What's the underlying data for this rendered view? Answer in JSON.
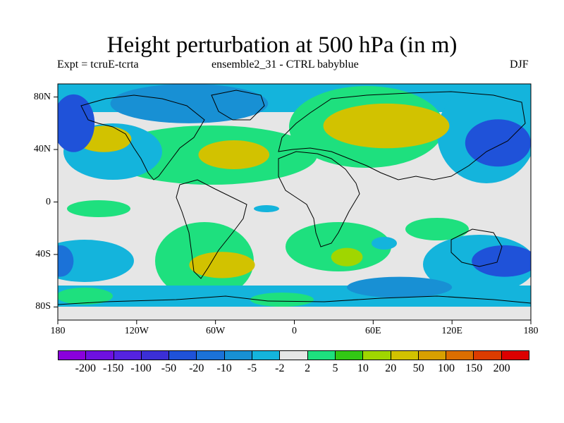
{
  "title": "Height perturbation at 500 hPa (in m)",
  "subtitle": {
    "left": "Expt = tcruE-tcrta",
    "center": "ensemble2_31 - CTRL babyblue",
    "right": "DJF"
  },
  "map": {
    "projection": "cylindrical equidistant",
    "lon_range": [
      -180,
      180
    ],
    "lat_range": [
      -90,
      90
    ],
    "ocean_background": "#e6e6e6",
    "coastline_color": "#000000",
    "lat_ticks": [
      {
        "value": 80,
        "label": "80N"
      },
      {
        "value": 40,
        "label": "40N"
      },
      {
        "value": 0,
        "label": "0"
      },
      {
        "value": -40,
        "label": "40S"
      },
      {
        "value": -80,
        "label": "80S"
      }
    ],
    "lon_ticks": [
      {
        "value": -180,
        "label": "180"
      },
      {
        "value": -120,
        "label": "120W"
      },
      {
        "value": -60,
        "label": "60W"
      },
      {
        "value": 0,
        "label": "0"
      },
      {
        "value": 60,
        "label": "60E"
      },
      {
        "value": 120,
        "label": "120E"
      },
      {
        "value": 180,
        "label": "180"
      }
    ]
  },
  "colorbar": {
    "colors": [
      "#8a00dc",
      "#6e10e0",
      "#5523e0",
      "#3b2fd6",
      "#1f52d9",
      "#1b72d8",
      "#1890d4",
      "#14b4dc",
      "#e6e6e6",
      "#1ee07e",
      "#32c814",
      "#a0d600",
      "#d2c200",
      "#d8a000",
      "#dc6e00",
      "#dc3c00",
      "#dc0000"
    ],
    "labels": [
      "-200",
      "-150",
      "-100",
      "-50",
      "-20",
      "-10",
      "-5",
      "-2",
      "2",
      "5",
      "10",
      "20",
      "50",
      "100",
      "150",
      "200"
    ]
  },
  "fields": [
    {
      "name": "north-pacific-positive",
      "level": "20",
      "color": "#d2c200",
      "lon": -145,
      "lat": 48,
      "rx": 21,
      "ry": 10
    },
    {
      "name": "north-atlantic-positive",
      "level": "20",
      "color": "#d2c200",
      "lon": -46,
      "lat": 36,
      "rx": 27,
      "ry": 11
    },
    {
      "name": "eurasia-positive",
      "level": "20",
      "color": "#d2c200",
      "lon": 70,
      "lat": 58,
      "rx": 48,
      "ry": 17
    },
    {
      "name": "south-america-positive",
      "level": "20",
      "color": "#d2c200",
      "lon": -55,
      "lat": -48,
      "rx": 25,
      "ry": 10
    },
    {
      "name": "south-indian-positive",
      "level": "10",
      "color": "#a0d600",
      "lon": 40,
      "lat": -42,
      "rx": 12,
      "ry": 7
    },
    {
      "name": "north-pacific-negative",
      "level": "-20",
      "color": "#1f52d9",
      "lon": -168,
      "lat": 60,
      "rx": 16,
      "ry": 22
    },
    {
      "name": "west-pacific-negative",
      "level": "-20",
      "color": "#1f52d9",
      "lon": 155,
      "lat": 45,
      "rx": 25,
      "ry": 18
    },
    {
      "name": "australia-negative",
      "level": "-20",
      "color": "#1f52d9",
      "lon": 160,
      "lat": -45,
      "rx": 25,
      "ry": 12
    },
    {
      "name": "south-pacific-negative",
      "level": "-10",
      "color": "#1b72d8",
      "lon": -178,
      "lat": -45,
      "rx": 10,
      "ry": 12
    },
    {
      "name": "arctic-negative",
      "level": "-5",
      "color": "#1890d4",
      "lon": -80,
      "lat": 75,
      "rx": 60,
      "ry": 15
    },
    {
      "name": "southern-ocean-negative",
      "level": "-5",
      "color": "#1890d4",
      "lon": 80,
      "lat": -65,
      "rx": 40,
      "ry": 8
    }
  ]
}
